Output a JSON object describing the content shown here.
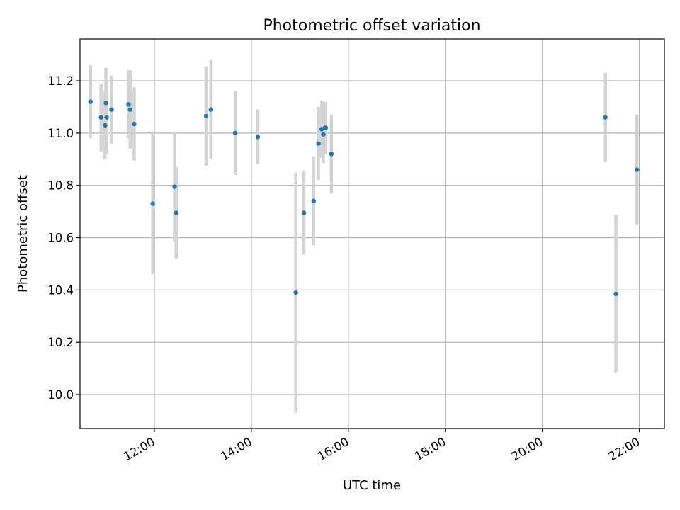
{
  "chart_data": {
    "type": "scatter",
    "title": "Photometric offset variation",
    "xlabel": "UTC time",
    "ylabel": "Photometric offset",
    "xlim": [
      "10:28",
      "22:31"
    ],
    "ylim": [
      9.87,
      11.36
    ],
    "x_ticks": [
      "12:00",
      "14:00",
      "16:00",
      "18:00",
      "20:00",
      "22:00"
    ],
    "y_ticks": [
      "10.0",
      "10.2",
      "10.4",
      "10.6",
      "10.8",
      "11.0",
      "11.2"
    ],
    "grid": true,
    "colors": {
      "point": "#1f77b4",
      "errorbar": "#d3d3d3",
      "grid": "#b0b0b0"
    },
    "series": [
      {
        "points": [
          {
            "x": "10:41",
            "y": 11.12,
            "err": 0.14
          },
          {
            "x": "10:54",
            "y": 11.06,
            "err": 0.13
          },
          {
            "x": "10:59",
            "y": 11.03,
            "err": 0.13
          },
          {
            "x": "11:00",
            "y": 11.115,
            "err": 0.135
          },
          {
            "x": "11:01",
            "y": 11.06,
            "err": 0.14
          },
          {
            "x": "11:07",
            "y": 11.09,
            "err": 0.13
          },
          {
            "x": "11:28",
            "y": 11.11,
            "err": 0.13
          },
          {
            "x": "11:30",
            "y": 11.09,
            "err": 0.15
          },
          {
            "x": "11:35",
            "y": 11.035,
            "err": 0.14
          },
          {
            "x": "11:58",
            "y": 10.73,
            "err": 0.27
          },
          {
            "x": "12:25",
            "y": 10.795,
            "err": 0.21
          },
          {
            "x": "12:27",
            "y": 10.695,
            "err": 0.175
          },
          {
            "x": "13:04",
            "y": 11.065,
            "err": 0.19
          },
          {
            "x": "13:10",
            "y": 11.09,
            "err": 0.19
          },
          {
            "x": "13:40",
            "y": 11.0,
            "err": 0.16
          },
          {
            "x": "14:08",
            "y": 10.985,
            "err": 0.105
          },
          {
            "x": "14:55",
            "y": 10.39,
            "err": 0.46
          },
          {
            "x": "15:05",
            "y": 10.695,
            "err": 0.16
          },
          {
            "x": "15:17",
            "y": 10.74,
            "err": 0.17
          },
          {
            "x": "15:23",
            "y": 10.96,
            "err": 0.14
          },
          {
            "x": "15:27",
            "y": 11.015,
            "err": 0.11
          },
          {
            "x": "15:29",
            "y": 10.995,
            "err": 0.11
          },
          {
            "x": "15:31",
            "y": 11.02,
            "err": 0.1
          },
          {
            "x": "15:32",
            "y": 11.02,
            "err": 0.1
          },
          {
            "x": "15:39",
            "y": 10.92,
            "err": 0.15
          },
          {
            "x": "21:18",
            "y": 11.06,
            "err": 0.17
          },
          {
            "x": "21:31",
            "y": 10.385,
            "err": 0.3
          },
          {
            "x": "21:57",
            "y": 10.86,
            "err": 0.21
          }
        ]
      }
    ]
  }
}
